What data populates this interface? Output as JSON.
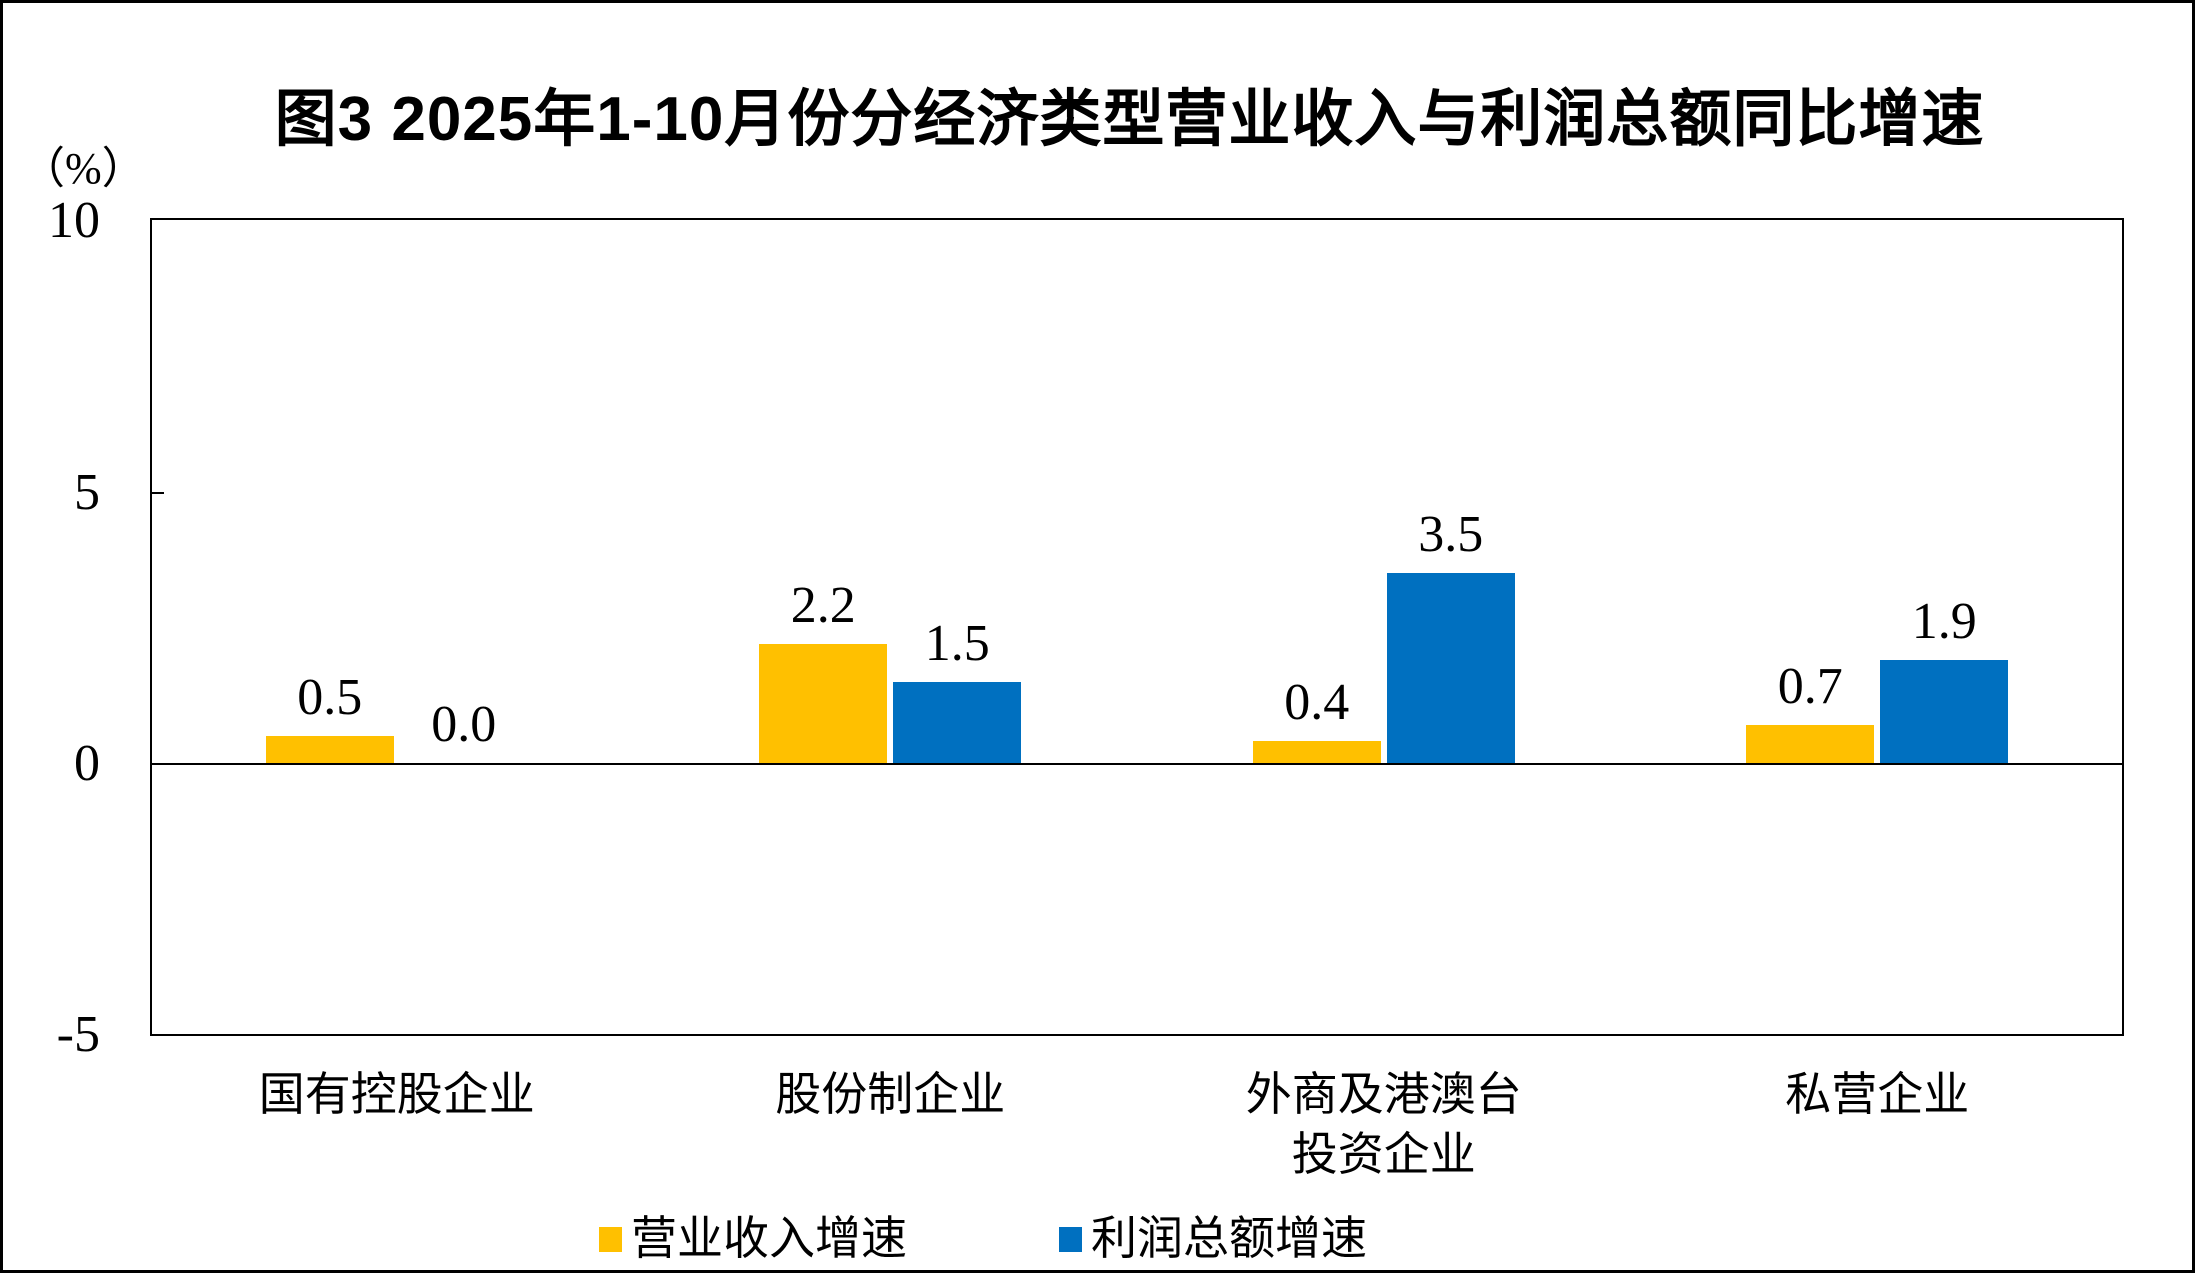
{
  "title": "图3 2025年1-10月份分经济类型营业收入与利润总额同比增速",
  "unit_label": "（%）",
  "chart_data": {
    "type": "bar",
    "title": "图3 2025年1-10月份分经济类型营业收入与利润总额同比增速",
    "ylabel": "（%）",
    "ylim": [
      -5,
      10
    ],
    "yticks": [
      10,
      5,
      0,
      -5
    ],
    "grid": false,
    "legend_position": "bottom",
    "categories": [
      "国有控股企业",
      "股份制企业",
      "外商及港澳台\n投资企业",
      "私营企业"
    ],
    "series": [
      {
        "name": "营业收入增速",
        "color": "#FFC000",
        "values": [
          0.5,
          2.2,
          0.4,
          0.7
        ],
        "value_labels": [
          "0.5",
          "2.2",
          "0.4",
          "0.7"
        ]
      },
      {
        "name": "利润总额增速",
        "color": "#0070C0",
        "values": [
          0.0,
          1.5,
          3.5,
          1.9
        ],
        "value_labels": [
          "0.0",
          "1.5",
          "3.5",
          "1.9"
        ]
      }
    ]
  },
  "legend": {
    "items": [
      {
        "label": "营业收入增速",
        "color": "#FFC000"
      },
      {
        "label": "利润总额增速",
        "color": "#0070C0"
      }
    ]
  }
}
